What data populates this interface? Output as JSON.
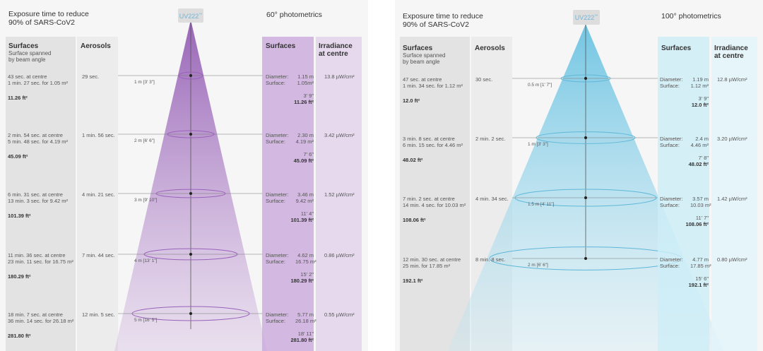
{
  "left": {
    "title_line1": "Exposure time to reduce",
    "title_line2": "90% of SARS-CoV2",
    "lamp_label": "UV222",
    "lamp_tm": "™",
    "photometrics_title": "60° photometrics",
    "surfaces_header": "Surfaces",
    "surfaces_sub1": "Surface spanned",
    "surfaces_sub2": "by beam angle",
    "aerosols_header": "Aerosols",
    "right_surfaces_header": "Surfaces",
    "irradiance_line1": "Irradiance",
    "irradiance_line2": "at centre",
    "accent_color": "#a46fc0",
    "rows": [
      {
        "centre": "43 sec. at centre",
        "full": "1 min. 27 sec. for 1.05 m²",
        "area_ft": "11.26 ft²",
        "aerosol": "29 sec.",
        "dist": "1 m [3' 3\"]",
        "diameter": "1.15 m",
        "surface": "1.05m²",
        "imp_dia": "3' 9\"",
        "imp_area": "11.26 ft²",
        "irradiance": "13.8 µW/cm²"
      },
      {
        "centre": "2 min. 54 sec. at centre",
        "full": "5 min. 48 sec. for 4.19 m²",
        "area_ft": "45.09 ft²",
        "aerosol": "1 min. 56 sec.",
        "dist": "2 m [6' 6\"]",
        "diameter": "2.30 m",
        "surface": "4.19 m²",
        "imp_dia": "7' 6\"",
        "imp_area": "45.09 ft²",
        "irradiance": "3.42 µW/cm²"
      },
      {
        "centre": "6 min. 31 sec. at centre",
        "full": "13 min. 3 sec. for 9.42 m²",
        "area_ft": "101.39 ft²",
        "aerosol": "4 min. 21 sec.",
        "dist": "3 m [9' 10\"]",
        "diameter": "3.46 m",
        "surface": "9.42 m²",
        "imp_dia": "11' 4\"",
        "imp_area": "101.39 ft²",
        "irradiance": "1.52 µW/cm²"
      },
      {
        "centre": "11 min. 36 sec. at centre",
        "full": "23 min. 11 sec. for 16.75 m²",
        "area_ft": "180.29 ft²",
        "aerosol": "7 min. 44 sec.",
        "dist": "4 m [13' 1\"]",
        "diameter": "4.62 m",
        "surface": "16.75 m²",
        "imp_dia": "15' 2\"",
        "imp_area": "180.29 ft²",
        "irradiance": "0.86 µW/cm²"
      },
      {
        "centre": "18 min. 7 sec. at centre",
        "full": "36 min. 14 sec. for 26.18 m²",
        "area_ft": "281.80 ft²",
        "aerosol": "12 min. 5 sec.",
        "dist": "5 m [16' 5\"]",
        "diameter": "5.77 m",
        "surface": "26.18 m²",
        "imp_dia": "18' 11\"",
        "imp_area": "281.80 ft²",
        "irradiance": "0.55 µW/cm²"
      }
    ]
  },
  "right": {
    "title_line1": "Exposure time to reduce",
    "title_line2": "90% of SARS-CoV2",
    "lamp_label": "UV222",
    "lamp_tm": "™",
    "photometrics_title": "100° photometrics",
    "surfaces_header": "Surfaces",
    "surfaces_sub1": "Surface spanned",
    "surfaces_sub2": "by beam angle",
    "aerosols_header": "Aerosols",
    "right_surfaces_header": "Surfaces",
    "irradiance_line1": "Irradiance",
    "irradiance_line2": "at centre",
    "accent_color": "#7fcbe4",
    "rows": [
      {
        "centre": "47 sec. at centre",
        "full": "1 min. 34 sec. for 1.12 m²",
        "area_ft": "12.0 ft²",
        "aerosol": "30 sec.",
        "dist": "0.5 m [1' 7\"]",
        "diameter": "1.19 m",
        "surface": "1.12 m²",
        "imp_dia": "3' 9\"",
        "imp_area": "12.0 ft²",
        "irradiance": "12.8 µW/cm²"
      },
      {
        "centre": "3 min. 8 sec. at centre",
        "full": "6 min. 15 sec. for 4.46 m²",
        "area_ft": "48.02 ft²",
        "aerosol": "2 min. 2 sec.",
        "dist": "1 m [3' 3\"]",
        "diameter": "2.4 m",
        "surface": "4.46 m²",
        "imp_dia": "7' 8\"",
        "imp_area": "48.02 ft²",
        "irradiance": "3.20 µW/cm²"
      },
      {
        "centre": "7 min. 2 sec. at centre",
        "full": "14 min. 4 sec. for 10.03 m²",
        "area_ft": "108.06 ft²",
        "aerosol": "4 min. 34 sec.",
        "dist": "1.5 m [4' 11\"]",
        "diameter": "3.57 m",
        "surface": "10.03 m²",
        "imp_dia": "11' 7\"",
        "imp_area": "108.06 ft²",
        "irradiance": "1.42 µW/cm²"
      },
      {
        "centre": "12 min. 30 sec. at centre",
        "full": "25 min. for 17.85 m²",
        "area_ft": "192.1 ft²",
        "aerosol": "8 min. 8 sec.",
        "dist": "2 m [6' 6\"]",
        "diameter": "4.77 m",
        "surface": "17.85 m²",
        "imp_dia": "15' 6\"",
        "imp_area": "192.1 ft²",
        "irradiance": "0.80 µW/cm²"
      }
    ]
  },
  "common": {
    "diameter_label": "Diameter:",
    "surface_label": "Surface:"
  }
}
